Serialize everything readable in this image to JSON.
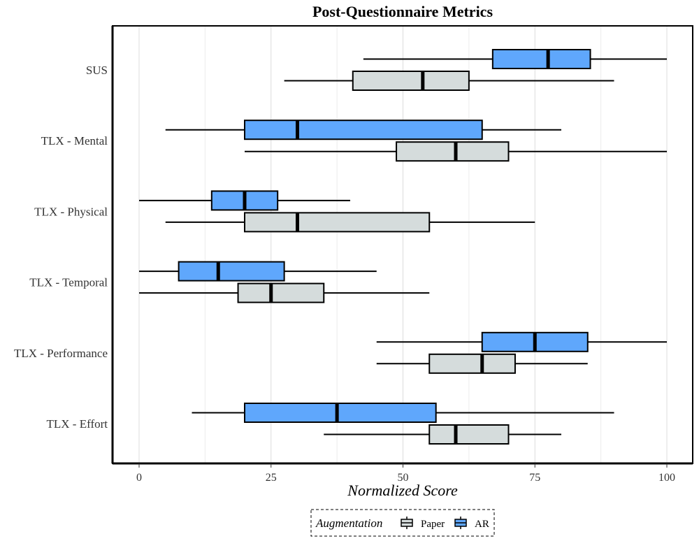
{
  "chart_data": {
    "type": "boxplot",
    "orientation": "horizontal",
    "title": "Post-Questionnaire Metrics",
    "xlabel": "Normalized Score",
    "ylabel": "",
    "xlim": [
      -5,
      105
    ],
    "xticks": [
      0,
      25,
      50,
      75,
      100
    ],
    "grid": "vertical-major",
    "legend": {
      "title": "Augmentation",
      "placement": "bottom",
      "entries": [
        "Paper",
        "AR"
      ]
    },
    "colors": {
      "Paper": "#d5dcdc",
      "AR": "#5fa7fc",
      "outline": "#000000",
      "grid": "#dcdcdc"
    },
    "categories": [
      "SUS",
      "TLX - Mental",
      "TLX - Physical",
      "TLX - Temporal",
      "TLX - Performance",
      "TLX - Effort"
    ],
    "series": [
      {
        "name": "AR",
        "boxes": [
          {
            "whisker_low": 42.5,
            "q1": 67,
            "median": 77.5,
            "q3": 85.5,
            "whisker_high": 100
          },
          {
            "whisker_low": 5,
            "q1": 20,
            "median": 30,
            "q3": 65,
            "whisker_high": 80
          },
          {
            "whisker_low": 0,
            "q1": 13.75,
            "median": 20,
            "q3": 26.25,
            "whisker_high": 40
          },
          {
            "whisker_low": 0,
            "q1": 7.5,
            "median": 15,
            "q3": 27.5,
            "whisker_high": 45
          },
          {
            "whisker_low": 45,
            "q1": 65,
            "median": 75,
            "q3": 85,
            "whisker_high": 100
          },
          {
            "whisker_low": 10,
            "q1": 20,
            "median": 37.5,
            "q3": 56.25,
            "whisker_high": 90
          }
        ]
      },
      {
        "name": "Paper",
        "boxes": [
          {
            "whisker_low": 27.5,
            "q1": 40.5,
            "median": 53.75,
            "q3": 62.5,
            "whisker_high": 90
          },
          {
            "whisker_low": 20,
            "q1": 48.75,
            "median": 60,
            "q3": 70,
            "whisker_high": 100
          },
          {
            "whisker_low": 5,
            "q1": 20,
            "median": 30,
            "q3": 55,
            "whisker_high": 75
          },
          {
            "whisker_low": 0,
            "q1": 18.75,
            "median": 25,
            "q3": 35,
            "whisker_high": 55
          },
          {
            "whisker_low": 45,
            "q1": 55,
            "median": 65,
            "q3": 71.25,
            "whisker_high": 85
          },
          {
            "whisker_low": 35,
            "q1": 55,
            "median": 60,
            "q3": 70,
            "whisker_high": 80
          }
        ]
      }
    ]
  }
}
